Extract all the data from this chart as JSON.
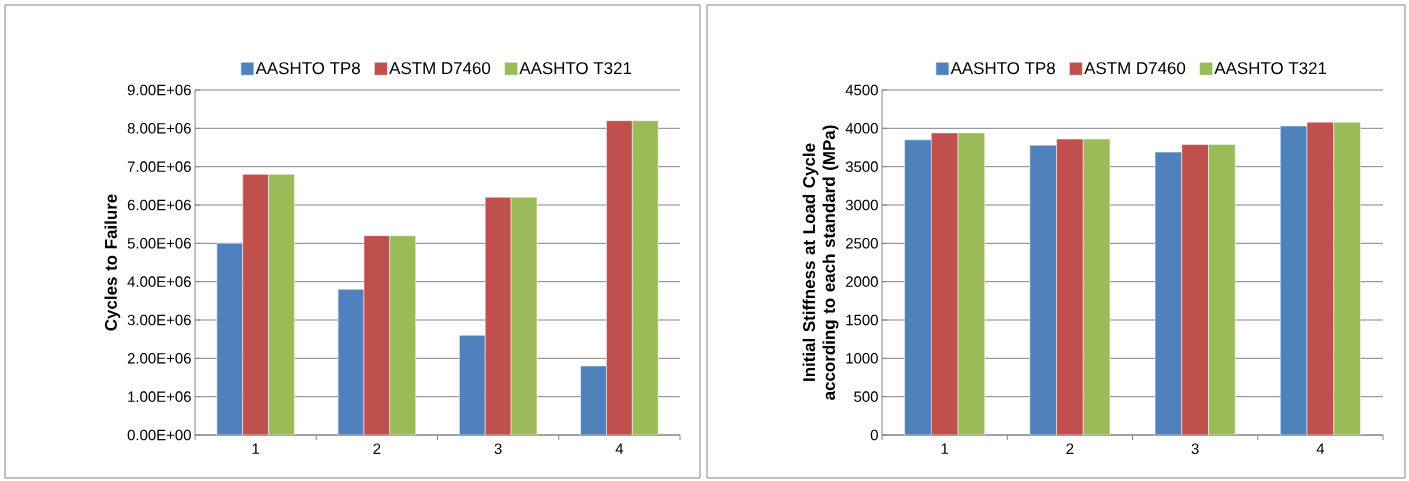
{
  "chart_data": [
    {
      "type": "bar",
      "ylabel": "Cycles to Failure",
      "categories": [
        "1",
        "2",
        "3",
        "4"
      ],
      "series": [
        {
          "name": "AASHTO TP8",
          "color": "#4f81bd",
          "values": [
            5000000,
            3800000,
            2600000,
            1800000
          ]
        },
        {
          "name": "ASTM D7460",
          "color": "#c0504d",
          "values": [
            6800000,
            5200000,
            6200000,
            8200000
          ]
        },
        {
          "name": "AASHTO T321",
          "color": "#9bbb59",
          "values": [
            6800000,
            5200000,
            6200000,
            8200000
          ]
        }
      ],
      "ylim": [
        0,
        9000000
      ],
      "yticks": [
        {
          "value": 0,
          "label": "0.00E+00"
        },
        {
          "value": 1000000,
          "label": "1.00E+06"
        },
        {
          "value": 2000000,
          "label": "2.00E+06"
        },
        {
          "value": 3000000,
          "label": "3.00E+06"
        },
        {
          "value": 4000000,
          "label": "4.00E+06"
        },
        {
          "value": 5000000,
          "label": "5.00E+06"
        },
        {
          "value": 6000000,
          "label": "6.00E+06"
        },
        {
          "value": 7000000,
          "label": "7.00E+06"
        },
        {
          "value": 8000000,
          "label": "8.00E+06"
        },
        {
          "value": 9000000,
          "label": "9.00E+06"
        }
      ],
      "grid": "y",
      "legend": "top"
    },
    {
      "type": "bar",
      "ylabel": "Initial Stiffness at Load Cycle according to each standard (MPa)",
      "categories": [
        "1",
        "2",
        "3",
        "4"
      ],
      "series": [
        {
          "name": "AASHTO TP8",
          "color": "#4f81bd",
          "values": [
            3850,
            3780,
            3690,
            4030
          ]
        },
        {
          "name": "ASTM D7460",
          "color": "#c0504d",
          "values": [
            3940,
            3860,
            3790,
            4080
          ]
        },
        {
          "name": "AASHTO T321",
          "color": "#9bbb59",
          "values": [
            3940,
            3860,
            3790,
            4080
          ]
        }
      ],
      "ylim": [
        0,
        4500
      ],
      "yticks": [
        0,
        500,
        1000,
        1500,
        2000,
        2500,
        3000,
        3500,
        4000,
        4500
      ],
      "grid": "y",
      "legend": "top"
    }
  ]
}
